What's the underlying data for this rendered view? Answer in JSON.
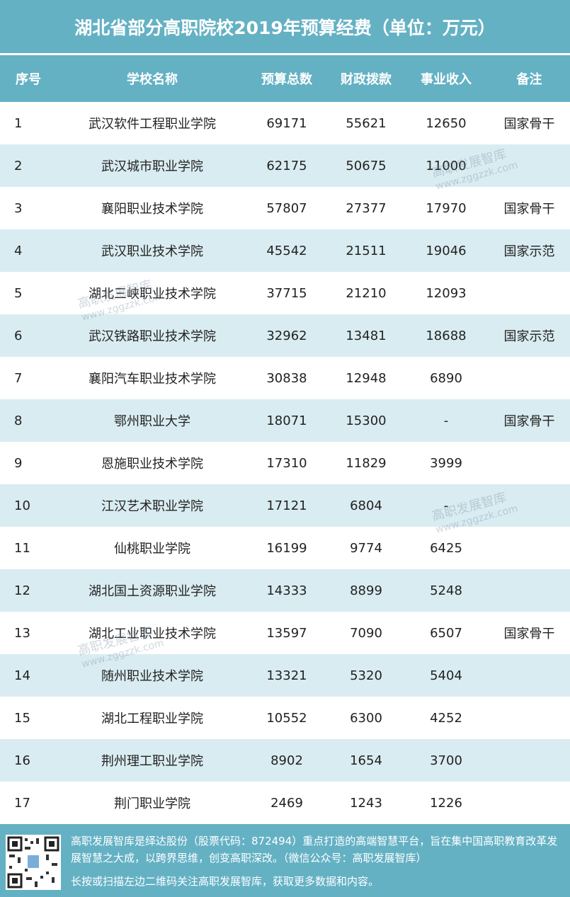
{
  "title": "湖北省部分高职院校2019年预算经费（单位：万元）",
  "columns": [
    "序号",
    "学校名称",
    "预算总数",
    "财政拨款",
    "事业收入",
    "备注"
  ],
  "rows": [
    [
      "1",
      "武汉软件工程职业学院",
      "69171",
      "55621",
      "12650",
      "国家骨干"
    ],
    [
      "2",
      "武汉城市职业学院",
      "62175",
      "50675",
      "11000",
      ""
    ],
    [
      "3",
      "襄阳职业技术学院",
      "57807",
      "27377",
      "17970",
      "国家骨干"
    ],
    [
      "4",
      "武汉职业技术学院",
      "45542",
      "21511",
      "19046",
      "国家示范"
    ],
    [
      "5",
      "湖北三峡职业技术学院",
      "37715",
      "21210",
      "12093",
      ""
    ],
    [
      "6",
      "武汉铁路职业技术学院",
      "32962",
      "13481",
      "18688",
      "国家示范"
    ],
    [
      "7",
      "襄阳汽车职业技术学院",
      "30838",
      "12948",
      "6890",
      ""
    ],
    [
      "8",
      "鄂州职业大学",
      "18071",
      "15300",
      "-",
      "国家骨干"
    ],
    [
      "9",
      "恩施职业技术学院",
      "17310",
      "11829",
      "3999",
      ""
    ],
    [
      "10",
      "江汉艺术职业学院",
      "17121",
      "6804",
      "-",
      ""
    ],
    [
      "11",
      "仙桃职业学院",
      "16199",
      "9774",
      "6425",
      ""
    ],
    [
      "12",
      "湖北国土资源职业学院",
      "14333",
      "8899",
      "5248",
      ""
    ],
    [
      "13",
      "湖北工业职业技术学院",
      "13597",
      "7090",
      "6507",
      "国家骨干"
    ],
    [
      "14",
      "随州职业技术学院",
      "13321",
      "5320",
      "5404",
      ""
    ],
    [
      "15",
      "湖北工程职业学院",
      "10552",
      "6300",
      "4252",
      ""
    ],
    [
      "16",
      "荆州理工职业学院",
      "8902",
      "1654",
      "3700",
      ""
    ],
    [
      "17",
      "荆门职业学院",
      "2469",
      "1243",
      "1226",
      ""
    ]
  ],
  "footer": {
    "description": "高职发展智库是绎达股份（股票代码：872494）重点打造的高端智慧平台，旨在集中国高职教育改革发展智慧之大成，以跨界思维，创变高职深改。（微信公众号：高职发展智库）",
    "cta": "长按或扫描左边二维码关注高职发展智库，获取更多数据和内容。"
  },
  "watermark": {
    "name": "高职发展智库",
    "url": "www.zggzzk.com"
  },
  "colors": {
    "header": "#64b1c4",
    "alt_row": "#d9ecf1"
  }
}
